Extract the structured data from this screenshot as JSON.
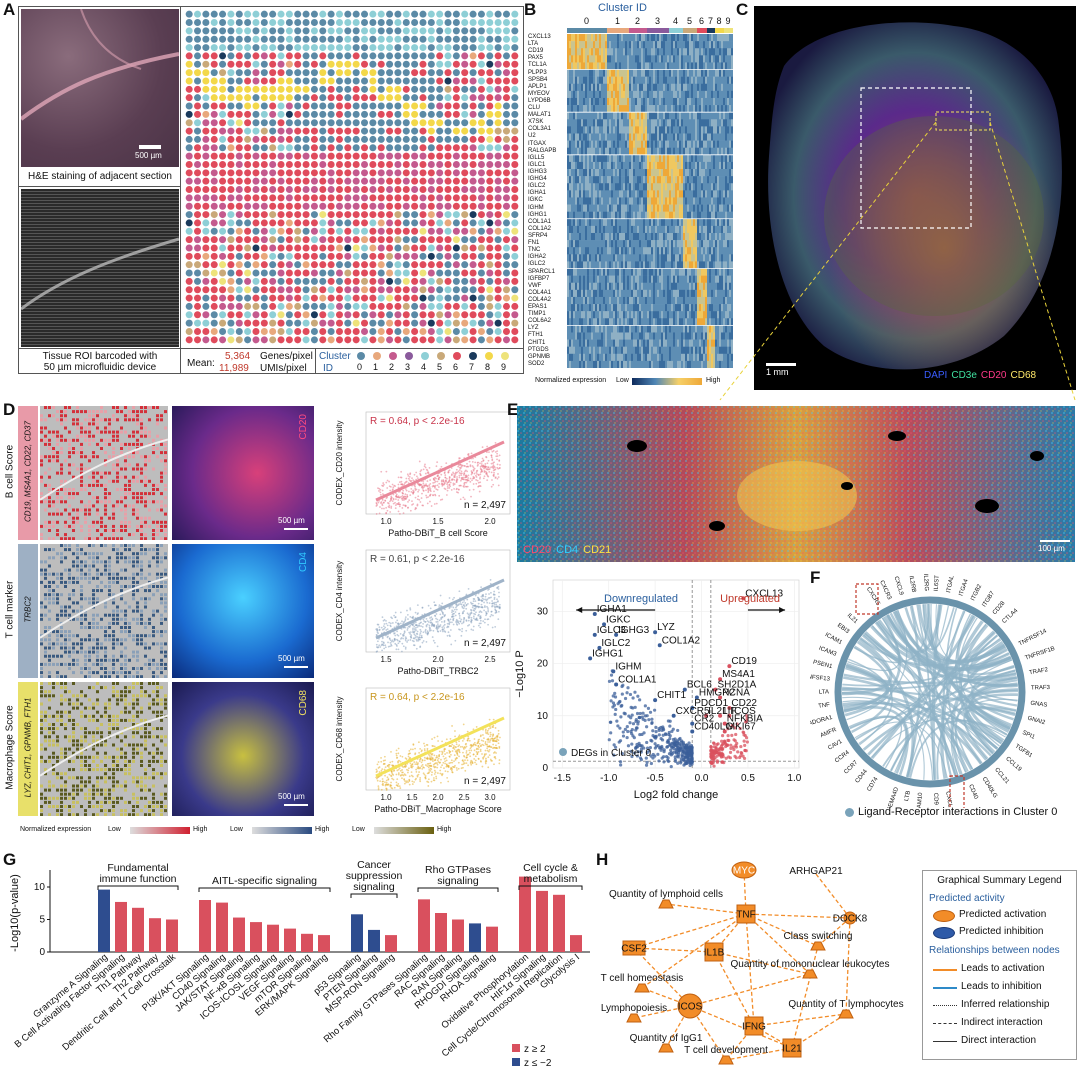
{
  "panelA": {
    "letter": "A",
    "he_caption": "H&E staining of adjacent section",
    "scale_500": "500 µm",
    "roi_caption_line1": "Tissue ROI barcoded with",
    "roi_caption_line2": "50 µm microfluidic device",
    "mean_label": "Mean:",
    "genes_value": "5,364",
    "genes_unit": "Genes/pixel",
    "umis_value": "11,989",
    "umis_unit": "UMIs/pixel",
    "cluster_label_1": "Cluster",
    "cluster_label_2": "ID",
    "clusters": [
      "0",
      "1",
      "2",
      "3",
      "4",
      "5",
      "6",
      "7",
      "8",
      "9"
    ],
    "cluster_colors": [
      "#5b8aa6",
      "#e8a87c",
      "#c45a8e",
      "#8a5a9c",
      "#8ecfd6",
      "#c9a979",
      "#e04b5c",
      "#1a3a5c",
      "#f3d84a",
      "#eee37a"
    ]
  },
  "panelB": {
    "letter": "B",
    "title": "Cluster ID",
    "cluster_ticks": [
      "0",
      "1",
      "2",
      "3",
      "4",
      "5",
      "6",
      "7",
      "8",
      "9"
    ],
    "genes": [
      "CXCL13",
      "LTA",
      "CD19",
      "PAX5",
      "TCL1A",
      "PLPP3",
      "SPSB4",
      "APLP1",
      "MYEOV",
      "LYPD6B",
      "CLU",
      "MALAT1",
      "X7SK",
      "COL3A1",
      "U2",
      "ITGAX",
      "RALGAPB",
      "IGLL5",
      "IGLC1",
      "IGHG3",
      "IGHG4",
      "IGLC2",
      "IGHA1",
      "IGKC",
      "IGHM",
      "IGHG1",
      "COL1A1",
      "COL1A2",
      "SFRP4",
      "FN1",
      "TNC",
      "IGHA2",
      "IGLC2",
      "SPARCL1",
      "IGFBP7",
      "VWF",
      "COL4A1",
      "COL4A2",
      "EPAS1",
      "TIMP1",
      "COL6A2",
      "LYZ",
      "FTH1",
      "CHIT1",
      "PTGDS",
      "GPNMB",
      "SOD2"
    ],
    "legend_title": "Normalized expression",
    "legend_low": "Low",
    "legend_high": "High"
  },
  "panelC": {
    "letter": "C",
    "scale": "1 mm",
    "channels": [
      {
        "name": "DAPI",
        "color": "#3a5cff"
      },
      {
        "name": "CD3e",
        "color": "#40e0a0"
      },
      {
        "name": "CD20",
        "color": "#ff3a8a"
      },
      {
        "name": "CD68",
        "color": "#ffe86a"
      }
    ]
  },
  "panelD": {
    "letter": "D",
    "rows": [
      {
        "score_label": "B cell Score",
        "genes": "CD19, MS4A1, CD22, CD37",
        "codex_marker": "CD20",
        "codex_color": "#ff4a80",
        "stat": "R = 0.64, p < 2.2e-16",
        "stat_color": "#c8344a",
        "n": "n = 2,497",
        "ylabel": "CODEX_CD20 intensity",
        "xlabel": "Patho-DBiT_B cell Score",
        "xticks": [
          "1.0",
          "1.5",
          "2.0"
        ],
        "scale": "500 µm",
        "band_color": "#e9899b",
        "point_color": "#e8788a",
        "chart_data": {
          "type": "scatter",
          "r": 0.64,
          "n": 2497
        }
      },
      {
        "score_label": "T cell marker",
        "genes": "TRBC2",
        "codex_marker": "CD4",
        "codex_color": "#30c8ff",
        "stat": "R = 0.61, p < 2.2e-16",
        "stat_color": "#444",
        "n": "n = 2,497",
        "ylabel": "CODEX_CD4 intensity",
        "xlabel": "Patho-DBiT_TRBC2",
        "xticks": [
          "1.5",
          "2.0",
          "2.5"
        ],
        "scale": "500 µm",
        "band_color": "#9fb3c8",
        "point_color": "#8aa3bd",
        "chart_data": {
          "type": "scatter",
          "r": 0.61,
          "n": 2497
        }
      },
      {
        "score_label": "Macrophage Score",
        "genes": "LYZ, CHIT1, GPNMB, FTH1",
        "codex_marker": "CD68",
        "codex_color": "#f0e060",
        "stat": "R = 0.64, p < 2.2e-16",
        "stat_color": "#c8961e",
        "n": "n = 2,497",
        "ylabel": "CODEX_CD68 intensity",
        "xlabel": "Patho-DBiT_Macrophage Score",
        "xticks": [
          "1.0",
          "1.5",
          "2.0",
          "2.5",
          "3.0"
        ],
        "scale": "500 µm",
        "band_color": "#f3e25a",
        "point_color": "#e6b030",
        "chart_data": {
          "type": "scatter",
          "r": 0.64,
          "n": 2497
        }
      }
    ],
    "legend_title": "Normalized expression",
    "legend_low": "Low",
    "legend_high": "High"
  },
  "panelE": {
    "letter": "E",
    "channels": [
      {
        "name": "CD20",
        "color": "#ff4a6a"
      },
      {
        "name": "CD4",
        "color": "#30d0ff"
      },
      {
        "name": "CD21",
        "color": "#ffe040"
      }
    ],
    "scale": "100 µm",
    "volcano": {
      "down_label": "Downregulated",
      "up_label": "Upregulated",
      "ylabel": "−Log10 P",
      "xlabel": "Log2 fold change",
      "legend": "DEGs in Cluster 0",
      "chart_data": {
        "type": "scatter",
        "xlim": [
          -1.6,
          1.05
        ],
        "ylim": [
          0,
          36
        ],
        "xticks": [
          -1.5,
          -1.0,
          -0.5,
          0.0,
          0.5,
          1.0
        ],
        "yticks": [
          0,
          10,
          20,
          30
        ],
        "labeled_points": [
          {
            "gene": "CXCL13",
            "x": 0.45,
            "y": 32.5
          },
          {
            "gene": "IGHA1",
            "x": -1.15,
            "y": 29.5
          },
          {
            "gene": "IGKC",
            "x": -1.05,
            "y": 27.5
          },
          {
            "gene": "IGLC3",
            "x": -1.15,
            "y": 25.5
          },
          {
            "gene": "IGHG3",
            "x": -0.92,
            "y": 25.5
          },
          {
            "gene": "LYZ",
            "x": -0.5,
            "y": 26
          },
          {
            "gene": "IGLC2",
            "x": -1.1,
            "y": 23
          },
          {
            "gene": "COL1A2",
            "x": -0.45,
            "y": 23.5
          },
          {
            "gene": "IGHG1",
            "x": -1.2,
            "y": 21
          },
          {
            "gene": "CD19",
            "x": 0.3,
            "y": 19.5
          },
          {
            "gene": "IGHM",
            "x": -0.95,
            "y": 18.5
          },
          {
            "gene": "MS4A1",
            "x": 0.2,
            "y": 17
          },
          {
            "gene": "COL1A1",
            "x": -0.92,
            "y": 16
          },
          {
            "gene": "BCL6",
            "x": -0.18,
            "y": 15
          },
          {
            "gene": "SH2D1A",
            "x": 0.15,
            "y": 15
          },
          {
            "gene": "HMGN2",
            "x": -0.05,
            "y": 13.5
          },
          {
            "gene": "PCNA",
            "x": 0.2,
            "y": 13.5
          },
          {
            "gene": "CHIT1",
            "x": -0.5,
            "y": 13
          },
          {
            "gene": "PDCD1",
            "x": -0.1,
            "y": 11.5
          },
          {
            "gene": "CD22",
            "x": 0.3,
            "y": 11.5
          },
          {
            "gene": "CXCR5",
            "x": -0.3,
            "y": 10
          },
          {
            "gene": "IL21",
            "x": 0.05,
            "y": 10
          },
          {
            "gene": "LIF",
            "x": 0.2,
            "y": 10
          },
          {
            "gene": "ICOS",
            "x": 0.3,
            "y": 10
          },
          {
            "gene": "CR2",
            "x": -0.1,
            "y": 8.5
          },
          {
            "gene": "NFKBIA",
            "x": 0.25,
            "y": 8.5
          },
          {
            "gene": "CD40LG",
            "x": -0.1,
            "y": 7
          },
          {
            "gene": "MKI67",
            "x": 0.25,
            "y": 7
          }
        ]
      }
    }
  },
  "panelF": {
    "letter": "F",
    "legend": "Ligand-Receptor interactions in Cluster 0",
    "right_labels": [
      "TNFRSF14",
      "TNFRSF1B",
      "TRAF2",
      "TRAF3",
      "GNAS",
      "GNAI2",
      "SPI1",
      "TGFB1",
      "CCL19",
      "CCL21",
      "CD40LG",
      "CD40"
    ],
    "left_labels": [
      "CD74",
      "CD44",
      "CCR7",
      "CCR4",
      "CAV1",
      "AMFR",
      "ADORA1",
      "TNF",
      "LTA",
      "TNFSF13",
      "PSEN1",
      "ICAM3",
      "ICAM1",
      "EBI3",
      "IL21"
    ],
    "top_labels": [
      "CXCR5",
      "CXCR3",
      "CXCL9",
      "IL2RB",
      "IL2RG",
      "IL6ST",
      "ITGAL",
      "ITGA4",
      "ITGB2",
      "ITGB7",
      "CD28",
      "CTLA4"
    ],
    "bottom_labels": [
      "CXCL13",
      "CD9",
      "ADAM10",
      "LTB",
      "SEMA4D"
    ],
    "highlight_top": "CXCR5",
    "highlight_bottom": "CXCL13"
  },
  "panelG": {
    "letter": "G",
    "ylabel": "-Log10(p-value)",
    "groups": [
      "Fundamental immune function",
      "AITL-specific signaling",
      "Cancer suppression signaling",
      "Rho GTPases signaling",
      "Cell cycle & metabolism"
    ],
    "legend_pos": "z ≥ 2",
    "legend_neg": "z ≤ −2",
    "pos_color": "#d9505e",
    "neg_color": "#2e4d8f",
    "chart_data": {
      "type": "bar",
      "ylim": [
        0,
        12
      ],
      "yticks": [
        0,
        5,
        10
      ],
      "categories": [
        "Granzyme A Signaling",
        "B Cell Activating Factor Signaling",
        "Th1 Pathway",
        "Th2 Pathway",
        "Dendritic Cell and T Cell Crosstalk",
        "PI3K/AKT Signaling",
        "CD40 Signaling",
        "JAK/STAT Signaling",
        "NF-κB Signaling",
        "ICOS-ICOSL Signaling",
        "VEGF Signaling",
        "mTOR Signaling",
        "ERK/MAPK Signaling",
        "p53 Signaling",
        "PTEN Signaling",
        "MSP-RON Signaling",
        "Rho Family GTPases Signaling",
        "RAC Signaling",
        "RAN Signaling",
        "RHOGDI Signaling",
        "RHOA Signaling",
        "Oxidative Phosphorylation",
        "HIF1α Signaling",
        "Cell Cycle/Chromosomal Replication",
        "Glycolysis I"
      ],
      "values": [
        9.6,
        7.7,
        6.8,
        5.2,
        5.0,
        8.0,
        7.6,
        5.3,
        4.6,
        4.2,
        3.6,
        2.8,
        2.6,
        5.8,
        3.4,
        2.6,
        8.1,
        6.0,
        5.0,
        4.4,
        3.9,
        11.6,
        9.4,
        8.8,
        2.6
      ],
      "signs": [
        "neg",
        "pos",
        "pos",
        "pos",
        "pos",
        "pos",
        "pos",
        "pos",
        "pos",
        "pos",
        "pos",
        "pos",
        "pos",
        "neg",
        "neg",
        "pos",
        "pos",
        "pos",
        "pos",
        "neg",
        "pos",
        "pos",
        "pos",
        "pos",
        "pos"
      ]
    }
  },
  "panelH": {
    "letter": "H",
    "nodes": [
      {
        "id": "MYC",
        "label": "MYC"
      },
      {
        "id": "ARHGAP21",
        "label": "ARHGAP21"
      },
      {
        "id": "qlc",
        "label": "Quantity of lymphoid cells"
      },
      {
        "id": "TNF",
        "label": "TNF"
      },
      {
        "id": "DOCK8",
        "label": "DOCK8"
      },
      {
        "id": "CSF2",
        "label": "CSF2"
      },
      {
        "id": "cs",
        "label": "Class switching"
      },
      {
        "id": "IL1B",
        "label": "IL1B"
      },
      {
        "id": "qml",
        "label": "Quantity of mononuclear leukocytes"
      },
      {
        "id": "tch",
        "label": "T cell homeostasis"
      },
      {
        "id": "ICOS",
        "label": "ICOS"
      },
      {
        "id": "lp",
        "label": "Lymphopoiesis"
      },
      {
        "id": "IFNG",
        "label": "IFNG"
      },
      {
        "id": "qtl",
        "label": "Quantity of T lymphocytes"
      },
      {
        "id": "qig",
        "label": "Quantity of IgG1"
      },
      {
        "id": "IL21",
        "label": "IL21"
      },
      {
        "id": "tcd",
        "label": "T cell development"
      }
    ],
    "legend": {
      "title": "Graphical Summary Legend",
      "activity_header": "Predicted activity",
      "activation": "Predicted activation",
      "inhibition": "Predicted inhibition",
      "relationship_header": "Relationships between nodes",
      "leads_activation": "Leads to activation",
      "leads_inhibition": "Leads to inhibition",
      "inferred": "Inferred relationship",
      "indirect": "Indirect interaction",
      "direct": "Direct interaction"
    }
  }
}
